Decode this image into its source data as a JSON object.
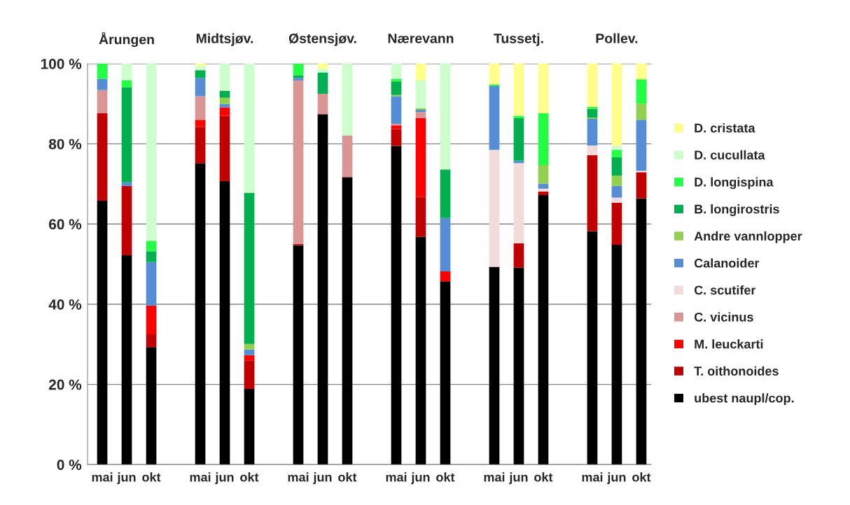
{
  "chart_data": {
    "type": "bar",
    "stacked": true,
    "categories": [
      "mai",
      "jun",
      "okt",
      null,
      "mai",
      "jun",
      "okt",
      null,
      "mai",
      "jun",
      "okt",
      null,
      "mai",
      "jun",
      "okt",
      null,
      "mai",
      "jun",
      "okt",
      null,
      "mai",
      "jun",
      "okt"
    ],
    "annotations": [
      "Årungen",
      "Midtsjøv.",
      "Østensjøv.",
      "Nærevann",
      "Tussetj.",
      "Pollev."
    ],
    "ylim": [
      0,
      100
    ],
    "yticks": [
      {
        "value": 0,
        "label": "0 %"
      },
      {
        "value": 20,
        "label": "20 %"
      },
      {
        "value": 40,
        "label": "40 %"
      },
      {
        "value": 60,
        "label": "60 %"
      },
      {
        "value": 80,
        "label": "80 %"
      },
      {
        "value": 100,
        "label": "100 %"
      }
    ],
    "grid": "y",
    "legend": "right",
    "series": [
      {
        "name": "ubest naupl/cop.",
        "color": "#000000",
        "values": [
          65.8,
          52.2,
          29.3,
          null,
          75.2,
          70.7,
          18.9,
          null,
          54.7,
          87.4,
          71.7,
          null,
          79.5,
          56.8,
          45.7,
          null,
          49.3,
          49.1,
          67.2,
          null,
          58.2,
          54.8,
          66.4
        ]
      },
      {
        "name": "T. oithonoides",
        "color": "#c00000",
        "values": [
          21.8,
          17.3,
          3.2,
          null,
          9.0,
          16.3,
          7.1,
          null,
          0.3,
          0,
          0,
          null,
          4.2,
          10.0,
          0,
          null,
          0,
          6.1,
          0.9,
          null,
          19.0,
          10.5,
          6.5
        ]
      },
      {
        "name": "M. leuckarti",
        "color": "#ff0000",
        "values": [
          0,
          0,
          7.2,
          null,
          1.8,
          2.1,
          1.3,
          null,
          0,
          0,
          0,
          null,
          0.9,
          19.6,
          2.5,
          null,
          0,
          0,
          0,
          null,
          0,
          0,
          0
        ]
      },
      {
        "name": "C. vicinus",
        "color": "#d99694",
        "values": [
          5.8,
          0,
          0,
          null,
          5.9,
          0,
          0,
          null,
          40.8,
          5.1,
          10.4,
          null,
          0.4,
          1.5,
          0,
          null,
          0,
          0,
          0,
          null,
          0,
          0,
          0
        ]
      },
      {
        "name": "C. scutifer",
        "color": "#f2dcdb",
        "values": [
          0,
          0,
          0,
          null,
          0,
          0,
          0,
          null,
          0,
          0,
          0,
          null,
          0,
          0,
          0,
          null,
          29.2,
          20.0,
          0.7,
          null,
          2.4,
          1.3,
          0.4
        ]
      },
      {
        "name": "Calanoider",
        "color": "#558ed5",
        "values": [
          2.8,
          0.9,
          10.8,
          null,
          4.5,
          0.8,
          1.4,
          null,
          0.6,
          0,
          0,
          null,
          6.9,
          0.6,
          13.3,
          null,
          15.9,
          0.6,
          1.3,
          null,
          6.6,
          2.9,
          12.7
        ]
      },
      {
        "name": "Andre vannlopper",
        "color": "#92d050",
        "values": [
          0,
          0,
          0,
          null,
          0,
          1.6,
          1.4,
          null,
          0,
          0,
          0,
          null,
          0.3,
          0.4,
          0,
          null,
          0,
          0,
          4.6,
          null,
          0.3,
          2.6,
          4.0
        ]
      },
      {
        "name": "B. longirostris",
        "color": "#00b050",
        "values": [
          0,
          23.7,
          2.7,
          null,
          2.0,
          1.7,
          37.7,
          null,
          0.7,
          5.3,
          0,
          null,
          3.4,
          0,
          12.1,
          null,
          0,
          10.6,
          0,
          null,
          2.2,
          4.5,
          0
        ]
      },
      {
        "name": "D. longispina",
        "color": "#22ff44",
        "values": [
          3.8,
          1.7,
          2.6,
          null,
          0,
          0,
          0,
          null,
          2.9,
          0,
          0,
          null,
          0.6,
          0,
          0,
          null,
          0.4,
          0.6,
          12.9,
          null,
          0.5,
          1.9,
          6.1
        ]
      },
      {
        "name": "D. cucullata",
        "color": "#ccffcc",
        "values": [
          0,
          4.2,
          44.2,
          null,
          1.0,
          6.8,
          32.2,
          null,
          0,
          0.9,
          17.9,
          null,
          3.8,
          6.9,
          26.4,
          null,
          0,
          0,
          0,
          null,
          0,
          1.0,
          0
        ]
      },
      {
        "name": "D. cristata",
        "color": "#ffff8b",
        "values": [
          0,
          0,
          0,
          null,
          0.6,
          0,
          0,
          null,
          0,
          1.3,
          0,
          null,
          0,
          4.2,
          0,
          null,
          5.2,
          13.0,
          12.4,
          null,
          10.8,
          20.5,
          3.9
        ]
      }
    ]
  }
}
